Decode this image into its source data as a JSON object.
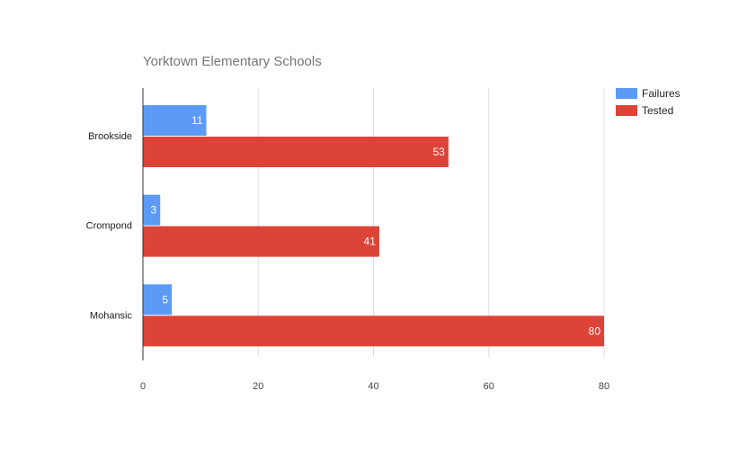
{
  "chart_data": {
    "type": "bar",
    "orientation": "horizontal",
    "title": "Yorktown Elementary Schools",
    "categories": [
      "Brookside",
      "Crompond",
      "Mohansic"
    ],
    "series": [
      {
        "name": "Failures",
        "values": [
          11,
          3,
          5
        ],
        "color": "#5b9bf5"
      },
      {
        "name": "Tested",
        "values": [
          53,
          41,
          80
        ],
        "color": "#db4437"
      }
    ],
    "xlim": [
      0,
      80
    ],
    "xticks": [
      "0",
      "20",
      "40",
      "60",
      "80"
    ],
    "grid": true,
    "legend_position": "right",
    "data_labels": true
  }
}
